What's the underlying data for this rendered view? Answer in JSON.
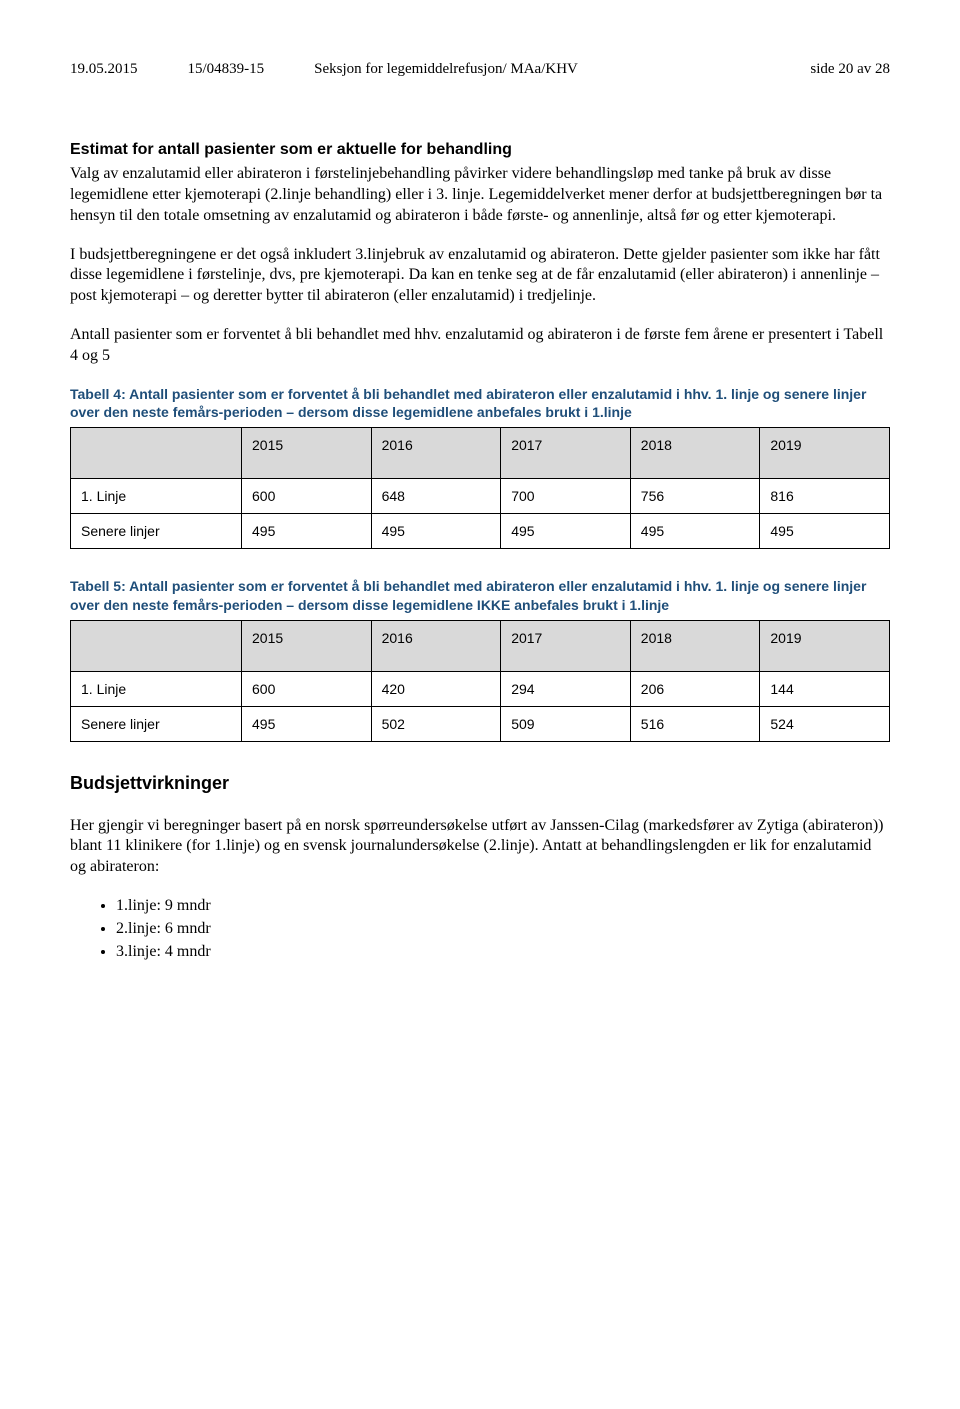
{
  "header": {
    "date": "19.05.2015",
    "caseno": "15/04839-15",
    "section": "Seksjon for legemiddelrefusjon/ MAa/KHV",
    "page": "side 20 av 28"
  },
  "section1": {
    "title": "Estimat for antall pasienter som er aktuelle for behandling",
    "para1": "Valg av enzalutamid eller abirateron i førstelinjebehandling påvirker videre behandlingsløp med tanke på bruk av disse legemidlene etter kjemoterapi (2.linje behandling) eller i 3. linje. Legemiddelverket mener derfor at budsjettberegningen bør ta hensyn til den totale omsetning av enzalutamid og abirateron i både første- og annenlinje, altså før og etter kjemoterapi.",
    "para2": "I budsjettberegningene er det også inkludert 3.linjebruk av enzalutamid og abirateron. Dette gjelder pasienter som ikke har fått disse legemidlene i førstelinje, dvs, pre kjemoterapi. Da kan en tenke seg at de får enzalutamid (eller abirateron) i annenlinje – post kjemoterapi – og deretter bytter til abirateron (eller enzalutamid) i tredjelinje.",
    "para3": "Antall pasienter som er forventet å bli behandlet med hhv. enzalutamid og abirateron i de første fem årene er presentert i Tabell 4 og 5"
  },
  "table4": {
    "caption": "Tabell 4: Antall pasienter som er forventet å bli behandlet med abirateron eller enzalutamid i hhv. 1. linje og senere linjer over den neste femårs-perioden – dersom disse legemidlene anbefales brukt i 1.linje",
    "years": [
      "2015",
      "2016",
      "2017",
      "2018",
      "2019"
    ],
    "row1label": "1.   Linje",
    "row1": [
      "600",
      "648",
      "700",
      "756",
      "816"
    ],
    "row2label": "Senere linjer",
    "row2": [
      "495",
      "495",
      "495",
      "495",
      "495"
    ],
    "header_bg": "#d9d9d9",
    "border_color": "#000000"
  },
  "table5": {
    "caption": "Tabell 5: Antall pasienter som er forventet å bli behandlet med abirateron eller enzalutamid i hhv. 1. linje og senere linjer over den neste femårs-perioden – dersom disse legemidlene IKKE anbefales brukt i 1.linje",
    "years": [
      "2015",
      "2016",
      "2017",
      "2018",
      "2019"
    ],
    "row1label": "1.   Linje",
    "row1": [
      "600",
      "420",
      "294",
      "206",
      "144"
    ],
    "row2label": "Senere linjer",
    "row2": [
      "495",
      "502",
      "509",
      "516",
      "524"
    ],
    "header_bg": "#d9d9d9",
    "border_color": "#000000"
  },
  "budget": {
    "heading": "Budsjettvirkninger",
    "para": "Her gjengir vi beregninger basert på en norsk spørreundersøkelse utført av Janssen-Cilag (markedsfører av Zytiga (abirateron)) blant 11 klinikere (for 1.linje) og en svensk journalundersøkelse (2.linje). Antatt at behandlingslengden er lik for enzalutamid og abirateron:",
    "bullets": [
      "1.linje: 9 mndr",
      "2.linje: 6 mndr",
      "3.linje: 4 mndr"
    ]
  }
}
